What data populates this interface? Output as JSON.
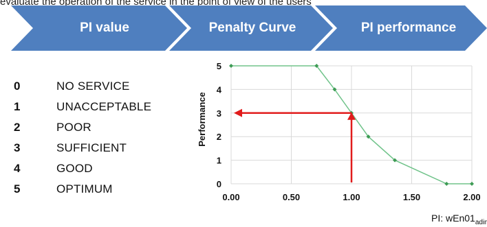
{
  "header_fragment": "evaluate the operation of the service in the point of view of the users",
  "steps": [
    {
      "label": "PI value"
    },
    {
      "label": "Penalty Curve"
    },
    {
      "label": "PI performance"
    }
  ],
  "colors": {
    "chevron": "#4f7fbf",
    "curve": "#70c38a",
    "curve_marker": "#3e9b55",
    "arrow": "#e11b1b",
    "grid": "#d9d9d9"
  },
  "legend": [
    {
      "value": "0",
      "label": "NO SERVICE"
    },
    {
      "value": "1",
      "label": "UNACCEPTABLE"
    },
    {
      "value": "2",
      "label": "POOR"
    },
    {
      "value": "3",
      "label": "SUFFICIENT"
    },
    {
      "value": "4",
      "label": "GOOD"
    },
    {
      "value": "5",
      "label": "OPTIMUM"
    }
  ],
  "chart_data": {
    "type": "line",
    "title": "",
    "xlabel": "",
    "ylabel": "Performance",
    "xlim": [
      0,
      2
    ],
    "ylim": [
      0,
      5
    ],
    "grid": true,
    "x_ticks": [
      "0.00",
      "0.50",
      "1.00",
      "1.50",
      "2.00"
    ],
    "y_ticks": [
      "0",
      "1",
      "2",
      "3",
      "4",
      "5"
    ],
    "series": [
      {
        "x": [
          0.0,
          0.71,
          0.86,
          1.0,
          1.14,
          1.36,
          1.79,
          2.0
        ],
        "y": [
          5,
          5,
          4,
          3,
          2,
          1,
          0,
          0
        ]
      }
    ],
    "annotation": {
      "x": 1.0,
      "y": 3
    }
  },
  "footer": {
    "pi_prefix": "PI: wEn01",
    "pi_subscript": "adim"
  }
}
